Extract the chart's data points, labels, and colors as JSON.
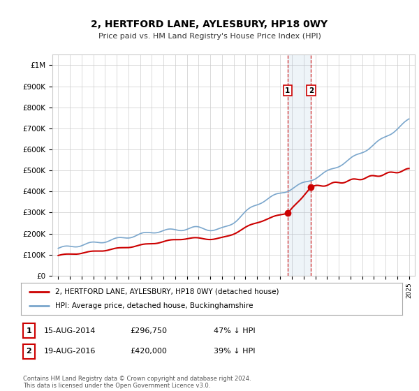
{
  "title": "2, HERTFORD LANE, AYLESBURY, HP18 0WY",
  "subtitle": "Price paid vs. HM Land Registry's House Price Index (HPI)",
  "ylim": [
    0,
    1050000
  ],
  "yticks": [
    0,
    100000,
    200000,
    300000,
    400000,
    500000,
    600000,
    700000,
    800000,
    900000,
    1000000
  ],
  "ytick_labels": [
    "£0",
    "£100K",
    "£200K",
    "£300K",
    "£400K",
    "£500K",
    "£600K",
    "£700K",
    "£800K",
    "£900K",
    "£1M"
  ],
  "xlim_start": 1994.5,
  "xlim_end": 2025.5,
  "hpi_color": "#7aa6cc",
  "property_color": "#cc0000",
  "sale1_date": 2014.62,
  "sale1_price": 296750,
  "sale2_date": 2016.62,
  "sale2_price": 420000,
  "legend_property_label": "2, HERTFORD LANE, AYLESBURY, HP18 0WY (detached house)",
  "legend_hpi_label": "HPI: Average price, detached house, Buckinghamshire",
  "table_row1": [
    "1",
    "15-AUG-2014",
    "£296,750",
    "47% ↓ HPI"
  ],
  "table_row2": [
    "2",
    "19-AUG-2016",
    "£420,000",
    "39% ↓ HPI"
  ],
  "footer": "Contains HM Land Registry data © Crown copyright and database right 2024.\nThis data is licensed under the Open Government Licence v3.0.",
  "background_color": "#ffffff",
  "grid_color": "#cccccc"
}
